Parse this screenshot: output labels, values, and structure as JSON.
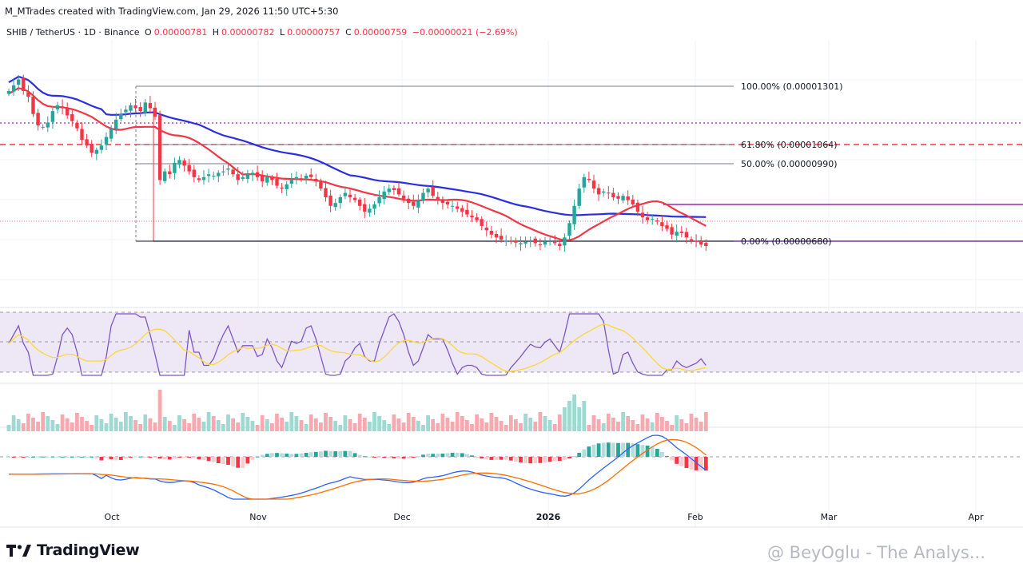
{
  "header": {
    "attribution": "M_MTrades created with TradingView.com, Jan 29, 2026 11:50 UTC+5:30",
    "symbol": "SHIB / TetherUS · 1D · Binance",
    "open_label": "O",
    "open": "0.00000781",
    "high_label": "H",
    "high": "0.00000782",
    "low_label": "L",
    "low": "0.00000757",
    "close_label": "C",
    "close": "0.00000759",
    "change": "−0.00000021 (−2.69%)"
  },
  "footer": {
    "logo_text": "TradingView",
    "watermark": "@ BeyOglu - The Analys..."
  },
  "colors": {
    "up": "#26a69a",
    "down": "#f23645",
    "ma_fast": "#f23645",
    "ma_slow": "#2a2ee0",
    "rsi_line": "#7e57c2",
    "rsi_ma": "#fdd835",
    "rsi_band": "#ede7f6",
    "macd_line": "#2962ff",
    "signal_line": "#ff6d00",
    "fib_line": "#787b86",
    "purple": "#9c27b0"
  },
  "chart_data": {
    "type": "candlestick",
    "scale": "price",
    "x_ticks": [
      "Oct",
      "Nov",
      "Dec",
      "2026",
      "Feb",
      "Mar",
      "Apr"
    ],
    "fib_levels": [
      {
        "ratio": "100.00%",
        "price": "0.00001301"
      },
      {
        "ratio": "61.80%",
        "price": "0.00001064"
      },
      {
        "ratio": "50.00%",
        "price": "0.00000990"
      },
      {
        "ratio": "0.00%",
        "price": "0.00000680"
      }
    ],
    "approx_closes_1e8": [
      1300,
      1320,
      1340,
      1300,
      1280,
      1220,
      1180,
      1175,
      1190,
      1230,
      1250,
      1240,
      1215,
      1195,
      1170,
      1130,
      1110,
      1085,
      1095,
      1110,
      1140,
      1170,
      1200,
      1220,
      1235,
      1250,
      1240,
      1230,
      1260,
      1240,
      1210,
      990,
      1020,
      1010,
      1050,
      1060,
      1040,
      1020,
      1000,
      990,
      1000,
      1010,
      1005,
      1015,
      1020,
      1030,
      1010,
      990,
      1000,
      1010,
      1015,
      1000,
      985,
      1000,
      990,
      970,
      960,
      975,
      990,
      1000,
      995,
      1005,
      1000,
      985,
      960,
      930,
      900,
      910,
      930,
      945,
      930,
      920,
      900,
      880,
      890,
      905,
      930,
      950,
      960,
      955,
      940,
      925,
      910,
      900,
      920,
      945,
      960,
      935,
      920,
      910,
      905,
      900,
      890,
      880,
      870,
      860,
      850,
      830,
      815,
      800,
      790,
      782,
      778,
      775,
      772,
      770,
      775,
      780,
      770,
      765,
      775,
      780,
      770,
      760,
      790,
      840,
      900,
      960,
      1000,
      990,
      960,
      940,
      950,
      945,
      930,
      925,
      935,
      920,
      905,
      880,
      860,
      850,
      855,
      845,
      830,
      820,
      800,
      810,
      805,
      790,
      780,
      775,
      765,
      760
    ]
  }
}
